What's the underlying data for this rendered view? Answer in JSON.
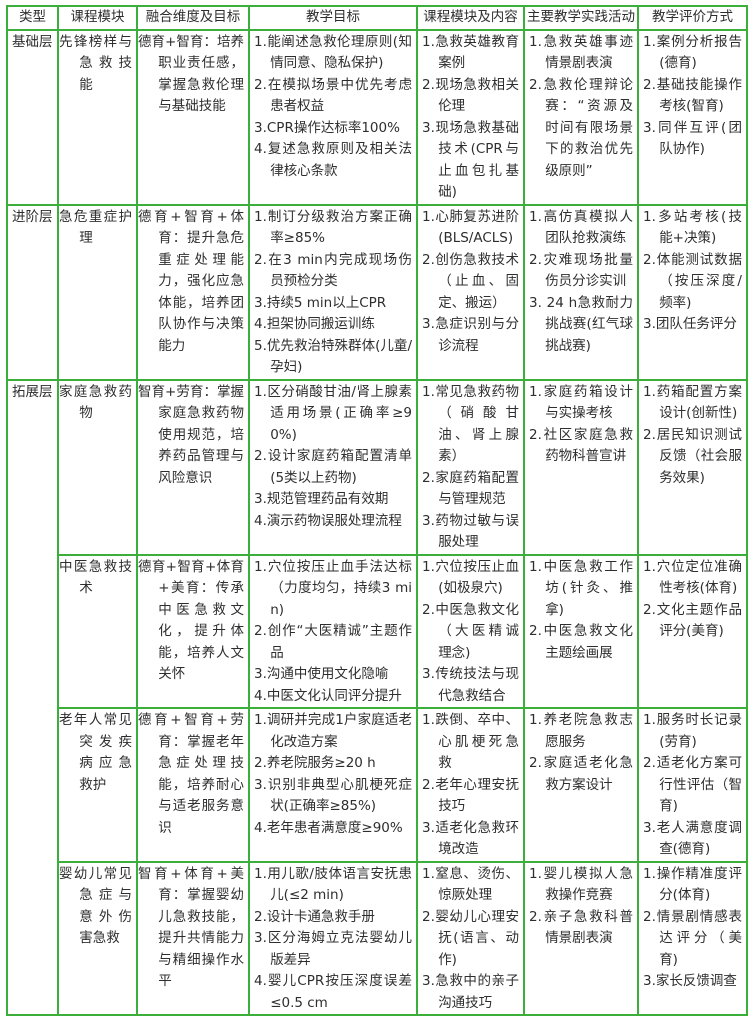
{
  "colors": {
    "border": "#3cae3a",
    "text": "#2e2e2e"
  },
  "headers": [
    "类型",
    "课程模块",
    "融合维度及目标",
    "教学目标",
    "课程模块及内容",
    "主要教学实践活动",
    "教学评价方式"
  ],
  "rows": [
    {
      "category": "基础层",
      "module": "先锋榜样与急救技能",
      "goals": "德育+智育：培养职业责任感，掌握急救伦理与基础技能",
      "objectives": [
        "1.能阐述急救伦理原则(知情同意、隐私保护)",
        "2.在模拟场景中优先考虑患者权益",
        "3.CPR操作达标率100%",
        "4.复述急救原则及相关法律核心条款"
      ],
      "contents": [
        "1.急救英雄教育案例",
        "2.现场急救相关伦理",
        "3.现场急救基础技术(CPR与止血包扎基础)"
      ],
      "activities": [
        "1.急救英雄事迹情景剧表演",
        "2.急救伦理辩论赛：“资源及时间有限场景下的救治优先级原则”"
      ],
      "evaluation": [
        "1.案例分析报告(德育)",
        "2.基础技能操作考核(智育)",
        "3.同伴互评(团队协作)"
      ]
    },
    {
      "category": "进阶层",
      "module": "急危重症护理",
      "goals": "德育+智育+体育：提升急危重症处理能力，强化应急体能，培养团队协作与决策能力",
      "objectives": [
        "1.制订分级救治方案正确率≥85%",
        "2.在3 min内完成现场伤员预检分类",
        "3.持续5 min以上CPR",
        "4.担架协同搬运训练",
        "5.优先救治特殊群体(儿童/孕妇)"
      ],
      "contents": [
        "1.心肺复苏进阶(BLS/ACLS)",
        "2.创伤急救技术（止血、固定、搬运）",
        "3.急症识别与分诊流程"
      ],
      "activities": [
        "1.高仿真模拟人团队抢救演练",
        "2.灾难现场批量伤员分诊实训",
        "3. 24 h急救耐力挑战赛(红气球挑战赛)"
      ],
      "evaluation": [
        "1.多站考核(技能+决策)",
        "2.体能测试数据（按压深度/频率)",
        "3.团队任务评分"
      ]
    },
    {
      "category": "拓展层",
      "module": "家庭急救药物",
      "goals": "智育+劳育：掌握家庭急救药物使用规范，培养药品管理与风险意识",
      "objectives": [
        "1.区分硝酸甘油/肾上腺素适用场景(正确率≥90%)",
        "2.设计家庭药箱配置清单(5类以上药物)",
        "3.规范管理药品有效期",
        "4.演示药物误服处理流程"
      ],
      "contents": [
        "1.常见急救药物（硝酸甘油、肾上腺素）",
        "2.家庭药箱配置与管理规范",
        "3.药物过敏与误服处理"
      ],
      "activities": [
        "1.家庭药箱设计与实操考核",
        "2.社区家庭急救药物科普宣讲"
      ],
      "evaluation": [
        "1.药箱配置方案设计(创新性)",
        "2.居民知识测试反馈（社会服务效果)"
      ]
    },
    {
      "category": "",
      "module": "中医急救技术",
      "goals": "德育+智育+体育+美育：传承中医急救文化，提升体能，培养人文关怀",
      "objectives": [
        "1.穴位按压止血手法达标（力度均匀，持续3 min)",
        "2.创作“大医精诚”主题作品",
        "3.沟通中使用文化隐喻",
        "4.中医文化认同评分提升"
      ],
      "contents": [
        "1.穴位按压止血(如极泉穴)",
        "2.中医急救文化（大医精诚理念)",
        "3.传统技法与现代急救结合"
      ],
      "activities": [
        "1.中医急救工作坊(针灸、推拿)",
        "2.中医急救文化主题绘画展"
      ],
      "evaluation": [
        "1.穴位定位准确性考核(体育)",
        "2.文化主题作品评分(美育)"
      ]
    },
    {
      "category": "",
      "module": "老年人常见突发疾病应急救护",
      "goals": "德育+智育+劳育：掌握老年急症处理技能，培养耐心与适老服务意识",
      "objectives": [
        "1.调研并完成1户家庭适老化改造方案",
        "2.养老院服务≥20 h",
        "3.识别非典型心肌梗死症状(正确率≥85%)",
        "4.老年患者满意度≥90%"
      ],
      "contents": [
        "1.跌倒、卒中、心肌梗死急救",
        "2.老年心理安抚技巧",
        "3.适老化急救环境改造"
      ],
      "activities": [
        "1.养老院急救志愿服务",
        "2.家庭适老化急救方案设计"
      ],
      "evaluation": [
        "1.服务时长记录(劳育)",
        "2.适老化方案可行性评估（智育)",
        "3.老人满意度调查(德育)"
      ]
    },
    {
      "category": "",
      "module": "婴幼儿常见急症与意外伤害急救",
      "goals": "智育+体育+美育：掌握婴幼儿急救技能，提升共情能力与精细操作水平",
      "objectives": [
        "1.用儿歌/肢体语言安抚患儿(≤2 min)",
        "2.设计卡通急救手册",
        "3.区分海姆立克法婴幼儿版差异",
        "4.婴儿CPR按压深度误差≤0.5 cm"
      ],
      "contents": [
        "1.窒息、烫伤、惊厥处理",
        "2.婴幼儿心理安抚(语言、动作)",
        "3.急救中的亲子沟通技巧"
      ],
      "activities": [
        "1.婴儿模拟人急救操作竞赛",
        "2.亲子急救科普情景剧表演"
      ],
      "evaluation": [
        "1.操作精准度评分(体育)",
        "2.情景剧情感表达评分（美育)",
        "3.家长反馈调查"
      ]
    }
  ]
}
